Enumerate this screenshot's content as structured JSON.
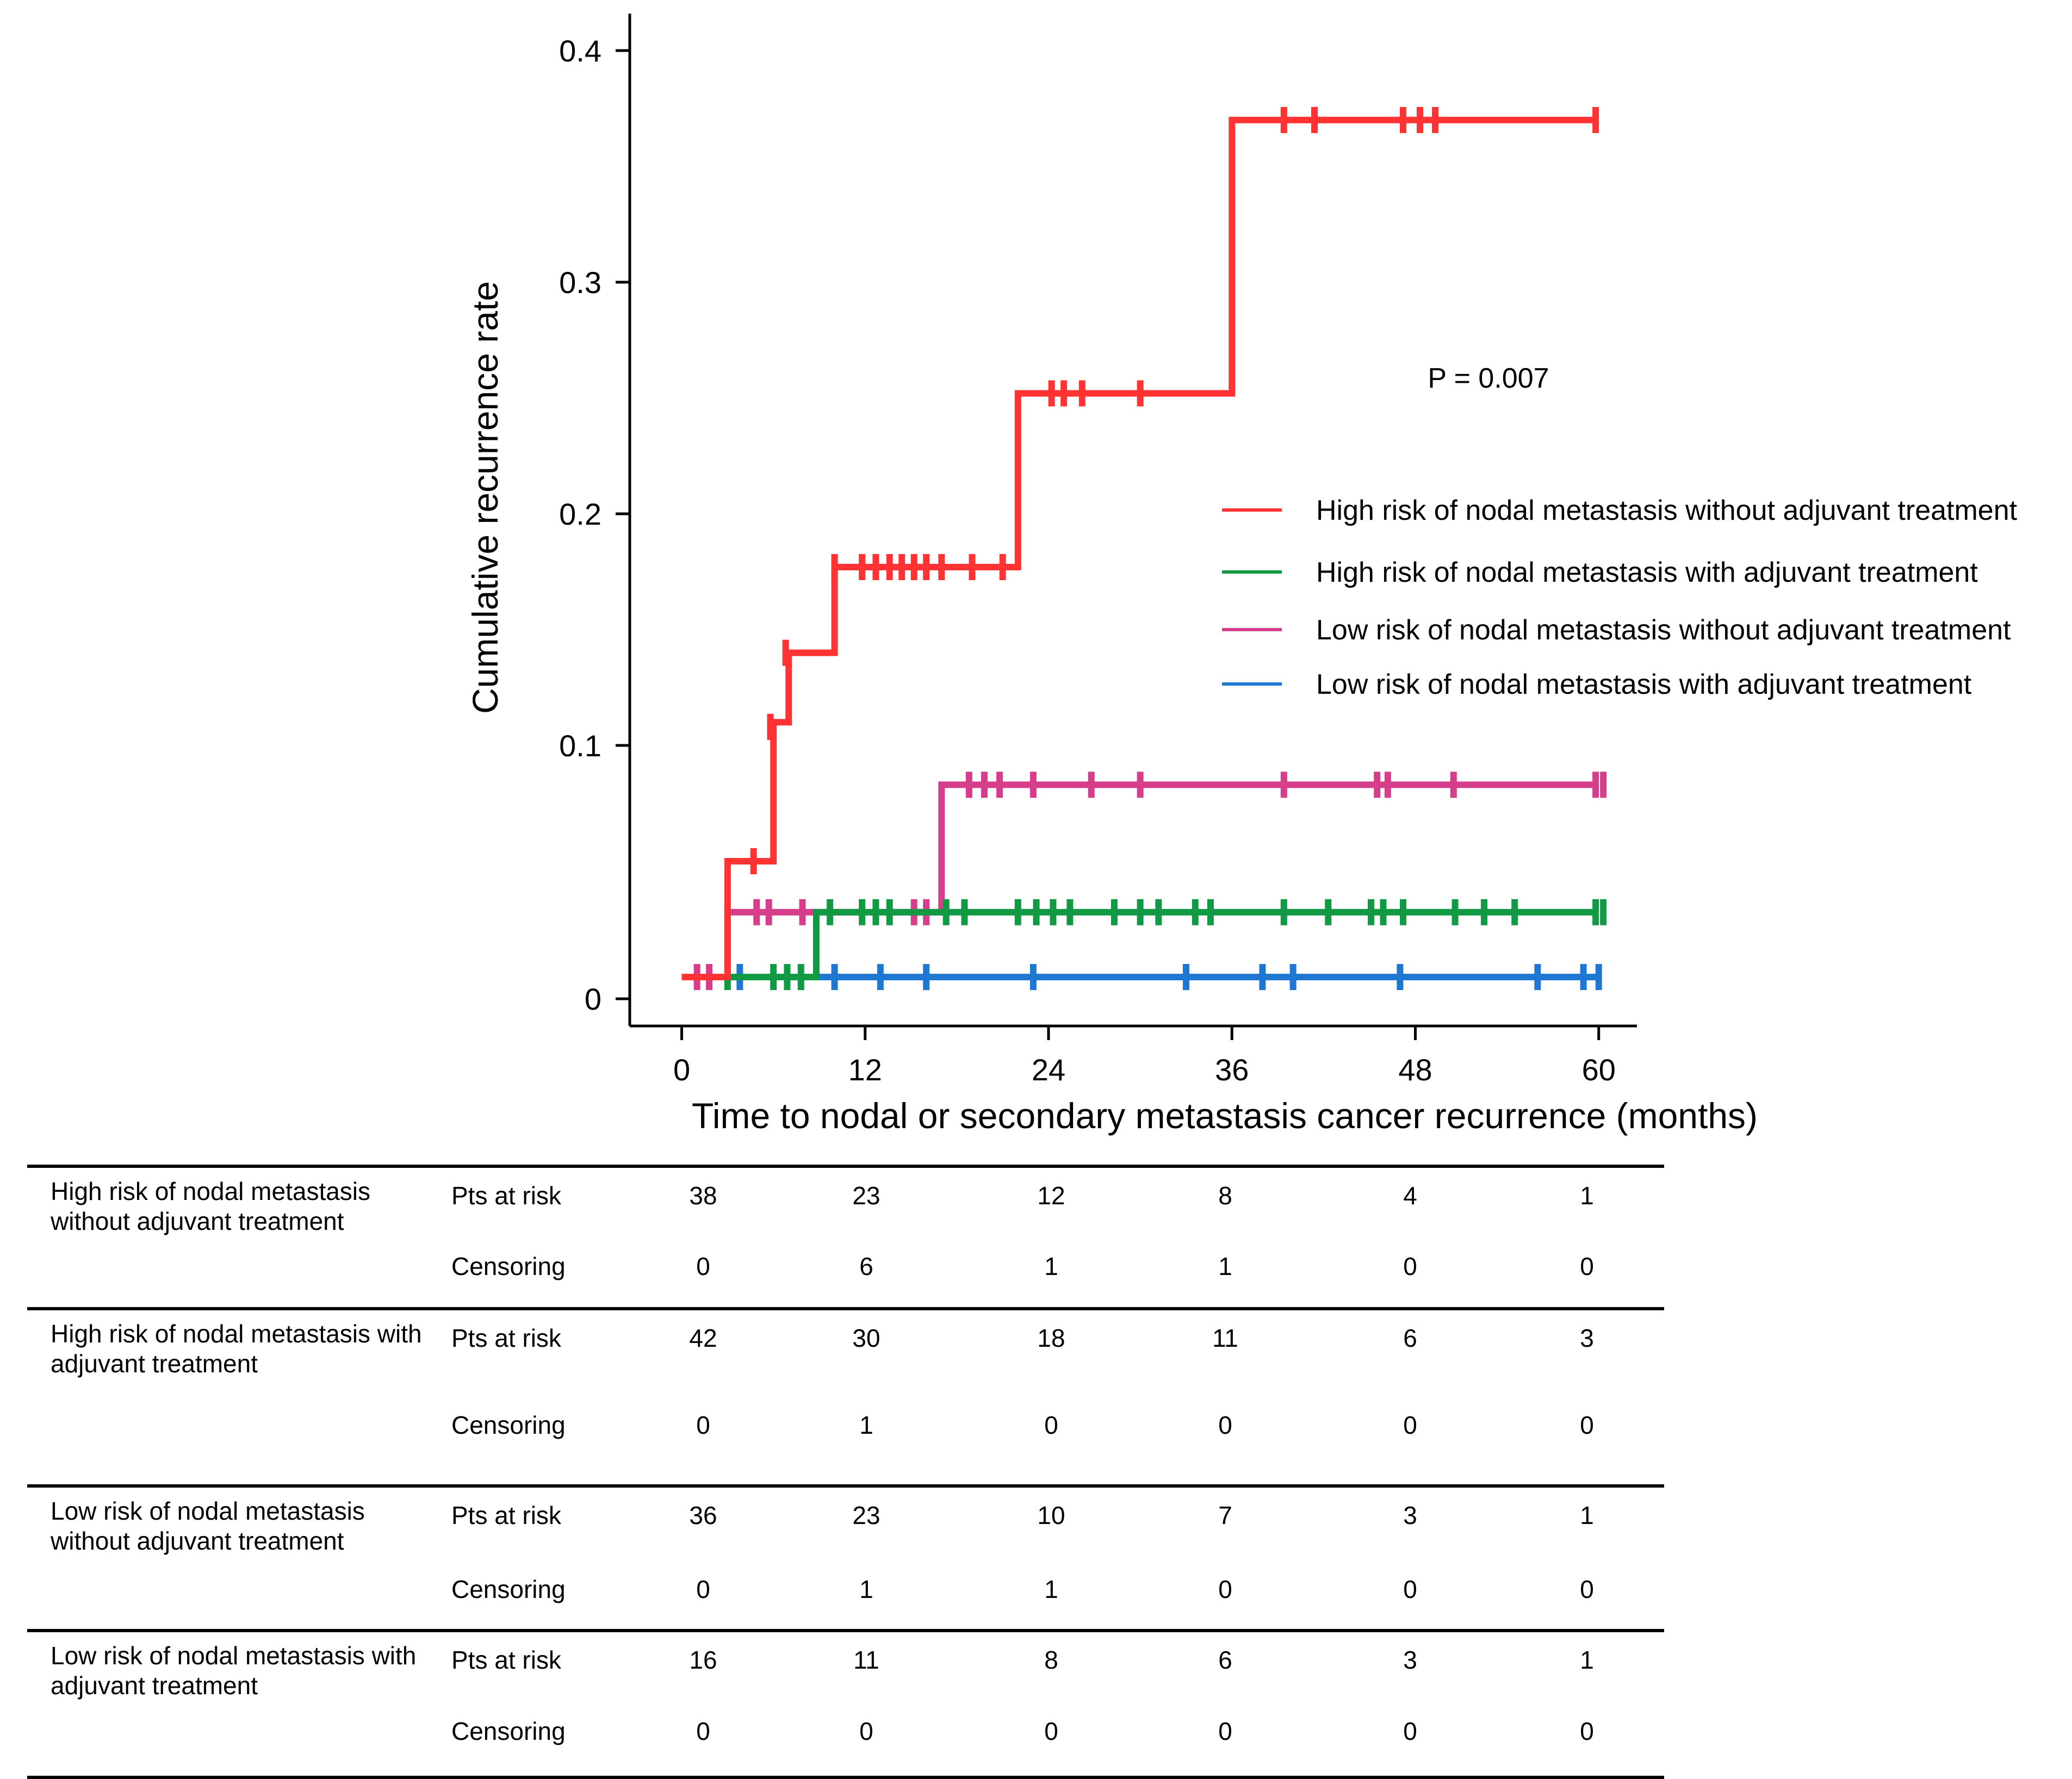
{
  "chart_data": {
    "type": "line",
    "subtype": "kaplan-meier-step",
    "xlabel": "Time to nodal or secondary metastasis cancer recurrence (months)",
    "ylabel": "Cumulative recurrence rate",
    "x_ticks": [
      0,
      12,
      24,
      36,
      48,
      60
    ],
    "y_ticks": [
      0,
      0.1,
      0.2,
      0.3,
      0.4
    ],
    "y_tick_labels": [
      "0",
      "0.1",
      "0.2",
      "0.3",
      "0.4"
    ],
    "xlim": [
      -3.4,
      62.5
    ],
    "ylim": [
      0,
      0.42
    ],
    "annotation": "P = 0.007",
    "legend_position": "center-right",
    "series": [
      {
        "name": "High risk of nodal metastasis without adjuvant treatment",
        "color": "#ff3333",
        "steps": [
          [
            0,
            0
          ],
          [
            3,
            0
          ],
          [
            3,
            0.05
          ],
          [
            6,
            0.05
          ],
          [
            6,
            0.11
          ],
          [
            7,
            0.11
          ],
          [
            7,
            0.14
          ],
          [
            10,
            0.14
          ],
          [
            10,
            0.177
          ],
          [
            22,
            0.177
          ],
          [
            22,
            0.252
          ],
          [
            36,
            0.252
          ],
          [
            36,
            0.37
          ],
          [
            60,
            0.37
          ]
        ],
        "censors": [
          [
            4.7,
            0.05
          ],
          [
            5.8,
            0.108
          ],
          [
            6.8,
            0.14
          ],
          [
            10,
            0.177
          ],
          [
            11.8,
            0.177
          ],
          [
            12.7,
            0.177
          ],
          [
            13.6,
            0.177
          ],
          [
            14.4,
            0.177
          ],
          [
            15.2,
            0.177
          ],
          [
            16,
            0.177
          ],
          [
            17,
            0.177
          ],
          [
            19,
            0.177
          ],
          [
            21,
            0.177
          ],
          [
            24.2,
            0.252
          ],
          [
            25,
            0.252
          ],
          [
            26.2,
            0.252
          ],
          [
            30,
            0.252
          ],
          [
            39.4,
            0.37
          ],
          [
            41.4,
            0.37
          ],
          [
            47.2,
            0.37
          ],
          [
            48.3,
            0.37
          ],
          [
            49.3,
            0.37
          ],
          [
            59.8,
            0.37
          ]
        ]
      },
      {
        "name": "High risk of nodal metastasis with adjuvant treatment",
        "color": "#119944",
        "steps": [
          [
            0,
            0
          ],
          [
            8.8,
            0
          ],
          [
            8.8,
            0.028
          ],
          [
            60,
            0.028
          ]
        ],
        "censors": [
          [
            3,
            0
          ],
          [
            6,
            0
          ],
          [
            6.9,
            0
          ],
          [
            7.8,
            0
          ],
          [
            9.7,
            0.028
          ],
          [
            11.8,
            0.028
          ],
          [
            12.7,
            0.028
          ],
          [
            13.6,
            0.028
          ],
          [
            17.3,
            0.028
          ],
          [
            18.5,
            0.028
          ],
          [
            22,
            0.028
          ],
          [
            23.2,
            0.028
          ],
          [
            24.3,
            0.028
          ],
          [
            25.4,
            0.028
          ],
          [
            28.3,
            0.028
          ],
          [
            30,
            0.028
          ],
          [
            31.2,
            0.028
          ],
          [
            33.6,
            0.028
          ],
          [
            34.6,
            0.028
          ],
          [
            39.4,
            0.028
          ],
          [
            42.3,
            0.028
          ],
          [
            45.1,
            0.028
          ],
          [
            45.9,
            0.028
          ],
          [
            47.2,
            0.028
          ],
          [
            50.6,
            0.028
          ],
          [
            52.5,
            0.028
          ],
          [
            54.5,
            0.028
          ],
          [
            59.8,
            0.028
          ],
          [
            60.3,
            0.028
          ]
        ]
      },
      {
        "name": "Low risk of nodal metastasis without adjuvant treatment",
        "color": "#d63d8a",
        "steps": [
          [
            0,
            0
          ],
          [
            3,
            0
          ],
          [
            3,
            0.028
          ],
          [
            17,
            0.028
          ],
          [
            17,
            0.083
          ],
          [
            60,
            0.083
          ]
        ],
        "censors": [
          [
            1,
            0
          ],
          [
            1.8,
            0
          ],
          [
            4.9,
            0.028
          ],
          [
            5.7,
            0.028
          ],
          [
            7.9,
            0.028
          ],
          [
            15.2,
            0.028
          ],
          [
            16,
            0.028
          ],
          [
            18.8,
            0.083
          ],
          [
            19.8,
            0.083
          ],
          [
            20.8,
            0.083
          ],
          [
            23,
            0.083
          ],
          [
            26.8,
            0.083
          ],
          [
            30,
            0.083
          ],
          [
            39.4,
            0.083
          ],
          [
            45.5,
            0.083
          ],
          [
            46.2,
            0.083
          ],
          [
            50.5,
            0.083
          ],
          [
            59.8,
            0.083
          ],
          [
            60.3,
            0.083
          ]
        ]
      },
      {
        "name": "Low risk of nodal metastasis with adjuvant treatment",
        "color": "#1e78d2",
        "steps": [
          [
            0,
            0
          ],
          [
            60,
            0
          ]
        ],
        "censors": [
          [
            3.8,
            0
          ],
          [
            10,
            0
          ],
          [
            13,
            0
          ],
          [
            16,
            0
          ],
          [
            23,
            0
          ],
          [
            33,
            0
          ],
          [
            38,
            0
          ],
          [
            40,
            0
          ],
          [
            47,
            0
          ],
          [
            56,
            0
          ],
          [
            59,
            0
          ],
          [
            60,
            0
          ]
        ]
      }
    ]
  },
  "risk_table": {
    "row_labels": [
      "Pts at risk",
      "Censoring"
    ],
    "groups": [
      {
        "name": "High risk of nodal metastasis without adjuvant treatment",
        "pts_at_risk": [
          "38",
          "23",
          "12",
          "8",
          "4",
          "1"
        ],
        "censoring": [
          "0",
          "6",
          "1",
          "1",
          "0",
          "0"
        ]
      },
      {
        "name": "High risk of nodal metastasis with adjuvant treatment",
        "pts_at_risk": [
          "42",
          "30",
          "18",
          "11",
          "6",
          "3"
        ],
        "censoring": [
          "0",
          "1",
          "0",
          "0",
          "0",
          "0"
        ]
      },
      {
        "name": "Low risk of nodal metastasis without adjuvant treatment",
        "pts_at_risk": [
          "36",
          "23",
          "10",
          "7",
          "3",
          "1"
        ],
        "censoring": [
          "0",
          "1",
          "1",
          "0",
          "0",
          "0"
        ]
      },
      {
        "name": "Low risk of nodal metastasis with adjuvant treatment",
        "pts_at_risk": [
          "16",
          "11",
          "8",
          "6",
          "3",
          "1"
        ],
        "censoring": [
          "0",
          "0",
          "0",
          "0",
          "0",
          "0"
        ]
      }
    ]
  }
}
